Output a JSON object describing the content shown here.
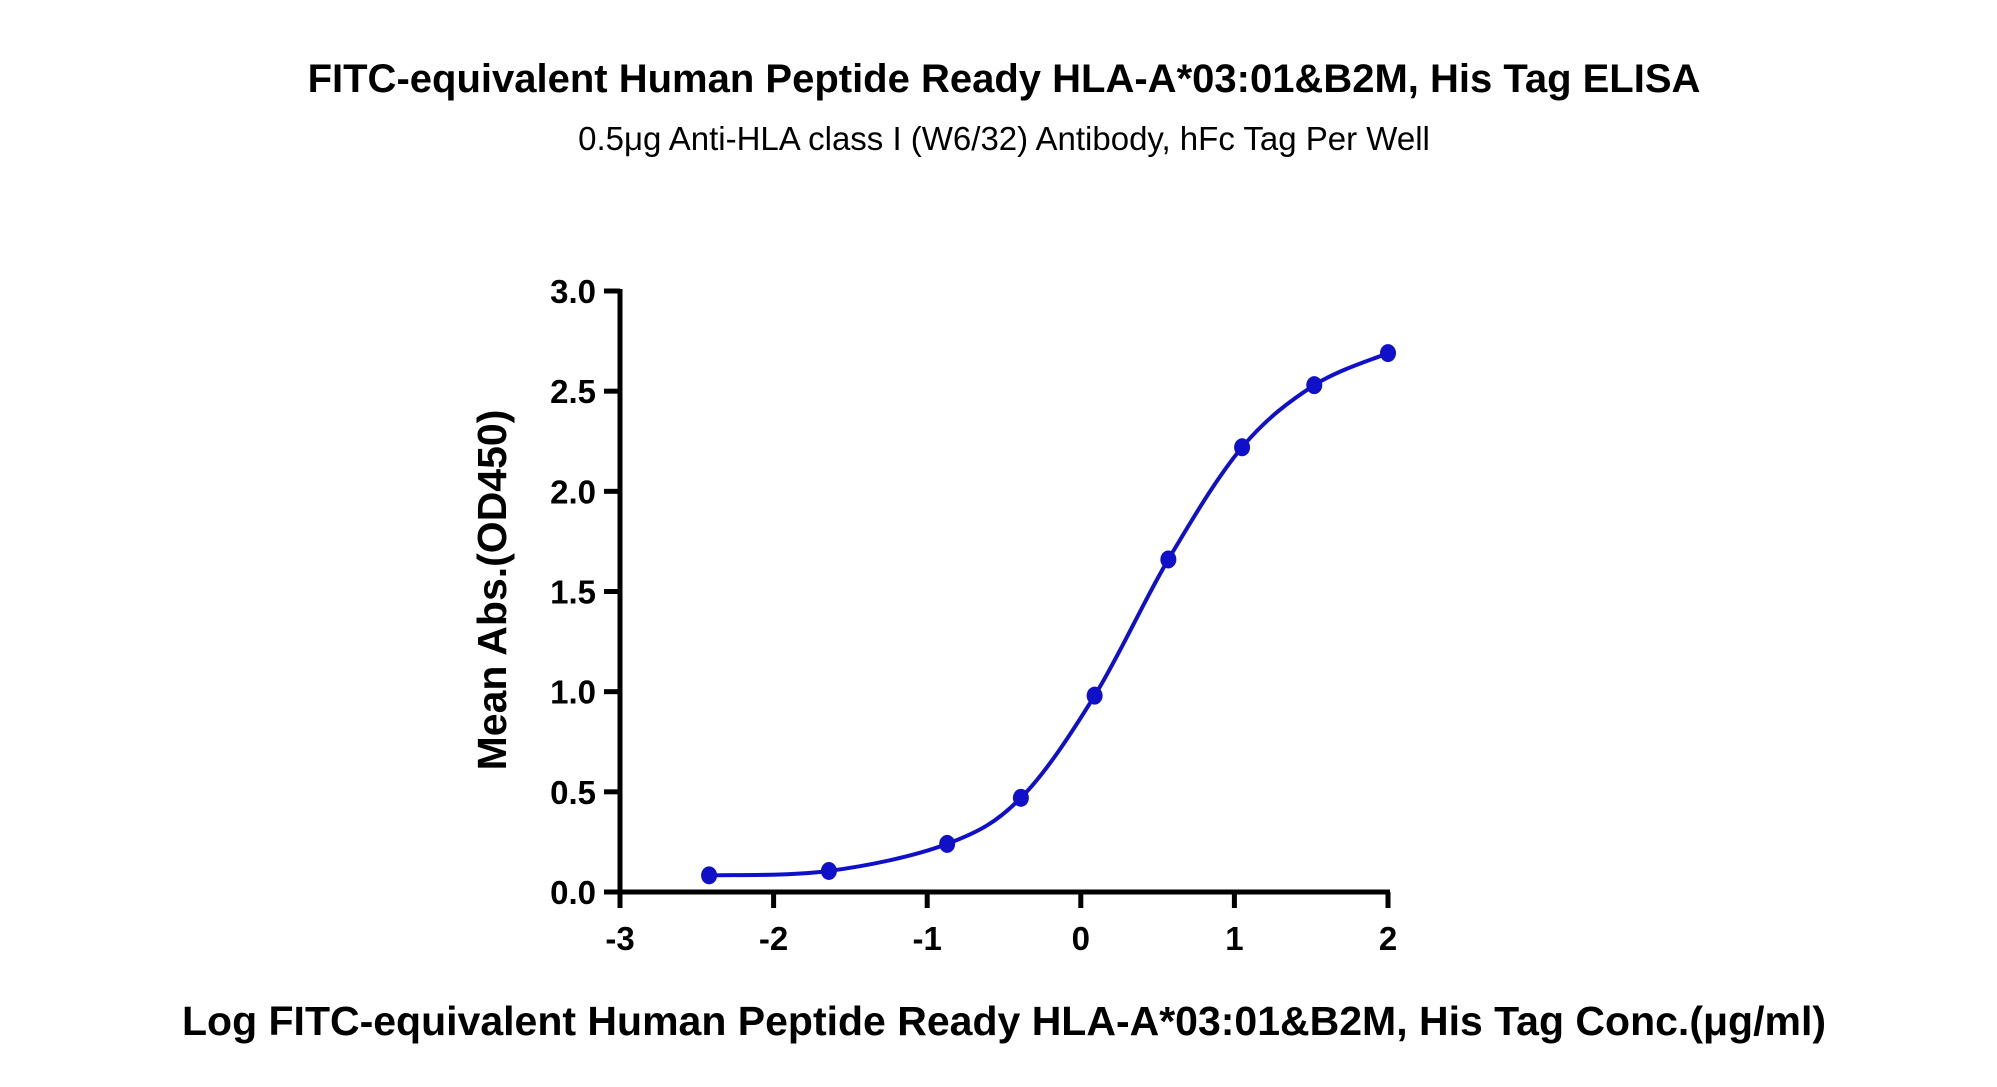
{
  "chart_data": {
    "type": "line",
    "title": "FITC-equivalent Human Peptide Ready HLA-A*03:01&B2M, His Tag ELISA",
    "subtitle": "0.5μg Anti-HLA class I (W6/32) Antibody, hFc Tag Per Well",
    "xlabel": "Log FITC-equivalent Human Peptide Ready HLA-A*03:01&B2M, His Tag Conc.(μg/ml)",
    "ylabel": "Mean Abs.(OD450)",
    "xlim": [
      -3,
      2
    ],
    "ylim": [
      0,
      3.0
    ],
    "x_ticks": [
      "-3",
      "-2",
      "-1",
      "0",
      "1",
      "2"
    ],
    "y_ticks": [
      "0.0",
      "0.5",
      "1.0",
      "1.5",
      "2.0",
      "2.5",
      "3.0"
    ],
    "grid": false,
    "series": [
      {
        "color": "#1010c8",
        "x": [
          -2.42,
          -1.64,
          -0.87,
          -0.39,
          0.09,
          0.57,
          1.05,
          1.52,
          2.0
        ],
        "y": [
          0.083,
          0.105,
          0.24,
          0.47,
          0.98,
          1.66,
          2.22,
          2.53,
          2.69
        ]
      }
    ]
  }
}
